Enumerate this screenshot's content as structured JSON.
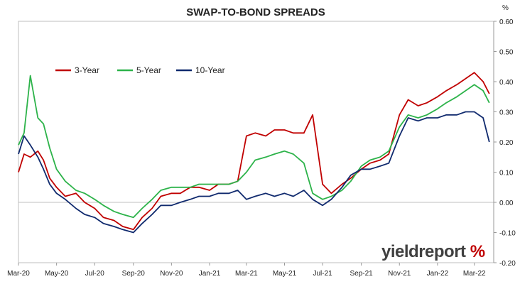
{
  "chart_data": {
    "type": "line",
    "title": "SWAP-TO-BOND SPREADS",
    "ylabel": "%",
    "ylim": [
      -0.2,
      0.6
    ],
    "yticks": [
      "-0.20",
      "-0.10",
      "0.00",
      "0.10",
      "0.20",
      "0.30",
      "0.40",
      "0.50",
      "0.60"
    ],
    "xlim": [
      "2020-03-01",
      "2022-04-01"
    ],
    "xticks": [
      "Mar-20",
      "May-20",
      "Jul-20",
      "Sep-20",
      "Nov-20",
      "Jan-21",
      "Mar-21",
      "May-21",
      "Jul-21",
      "Sep-21",
      "Nov-21",
      "Jan-22",
      "Mar-22"
    ],
    "legend_position": "top-left",
    "grid": "none",
    "x": [
      "2020-03-01",
      "2020-03-10",
      "2020-03-20",
      "2020-04-01",
      "2020-04-10",
      "2020-04-20",
      "2020-05-01",
      "2020-05-15",
      "2020-06-01",
      "2020-06-15",
      "2020-07-01",
      "2020-07-15",
      "2020-08-01",
      "2020-08-15",
      "2020-09-01",
      "2020-09-15",
      "2020-10-01",
      "2020-10-15",
      "2020-11-01",
      "2020-11-15",
      "2020-12-01",
      "2020-12-15",
      "2021-01-01",
      "2021-01-15",
      "2021-02-01",
      "2021-02-15",
      "2021-03-01",
      "2021-03-15",
      "2021-04-01",
      "2021-04-15",
      "2021-05-01",
      "2021-05-15",
      "2021-06-01",
      "2021-06-15",
      "2021-07-01",
      "2021-07-15",
      "2021-08-01",
      "2021-08-15",
      "2021-09-01",
      "2021-09-15",
      "2021-10-01",
      "2021-10-15",
      "2021-11-01",
      "2021-11-15",
      "2021-12-01",
      "2021-12-15",
      "2022-01-01",
      "2022-01-15",
      "2022-02-01",
      "2022-02-15",
      "2022-03-01",
      "2022-03-15",
      "2022-03-25"
    ],
    "series": [
      {
        "name": "3-Year",
        "color": "#c00000",
        "values": [
          0.1,
          0.16,
          0.15,
          0.17,
          0.14,
          0.08,
          0.05,
          0.02,
          0.03,
          0.0,
          -0.02,
          -0.05,
          -0.06,
          -0.08,
          -0.09,
          -0.05,
          -0.02,
          0.02,
          0.03,
          0.03,
          0.05,
          0.05,
          0.04,
          0.06,
          0.06,
          0.07,
          0.22,
          0.23,
          0.22,
          0.24,
          0.24,
          0.23,
          0.23,
          0.29,
          0.06,
          0.03,
          0.06,
          0.08,
          0.11,
          0.13,
          0.14,
          0.16,
          0.29,
          0.34,
          0.32,
          0.33,
          0.35,
          0.37,
          0.39,
          0.41,
          0.43,
          0.4,
          0.36
        ]
      },
      {
        "name": "5-Year",
        "color": "#2db34a",
        "values": [
          0.19,
          0.23,
          0.42,
          0.28,
          0.26,
          0.18,
          0.11,
          0.07,
          0.04,
          0.03,
          0.01,
          -0.01,
          -0.03,
          -0.04,
          -0.05,
          -0.02,
          0.01,
          0.04,
          0.05,
          0.05,
          0.05,
          0.06,
          0.06,
          0.06,
          0.06,
          0.07,
          0.1,
          0.14,
          0.15,
          0.16,
          0.17,
          0.16,
          0.13,
          0.03,
          0.01,
          0.02,
          0.04,
          0.07,
          0.12,
          0.14,
          0.15,
          0.17,
          0.25,
          0.29,
          0.28,
          0.29,
          0.31,
          0.33,
          0.35,
          0.37,
          0.39,
          0.37,
          0.33
        ]
      },
      {
        "name": "10-Year",
        "color": "#102a6e",
        "values": [
          0.16,
          0.22,
          0.19,
          0.15,
          0.11,
          0.06,
          0.03,
          0.01,
          -0.02,
          -0.04,
          -0.05,
          -0.07,
          -0.08,
          -0.09,
          -0.1,
          -0.07,
          -0.04,
          -0.01,
          -0.01,
          0.0,
          0.01,
          0.02,
          0.02,
          0.03,
          0.03,
          0.04,
          0.01,
          0.02,
          0.03,
          0.02,
          0.03,
          0.02,
          0.04,
          0.01,
          -0.01,
          0.01,
          0.05,
          0.09,
          0.11,
          0.11,
          0.12,
          0.13,
          0.22,
          0.28,
          0.27,
          0.28,
          0.28,
          0.29,
          0.29,
          0.3,
          0.3,
          0.28,
          0.2
        ]
      }
    ]
  },
  "brand": {
    "text": "yieldreport",
    "symbol": "%",
    "color": "#404040",
    "symbol_color": "#c00000"
  }
}
